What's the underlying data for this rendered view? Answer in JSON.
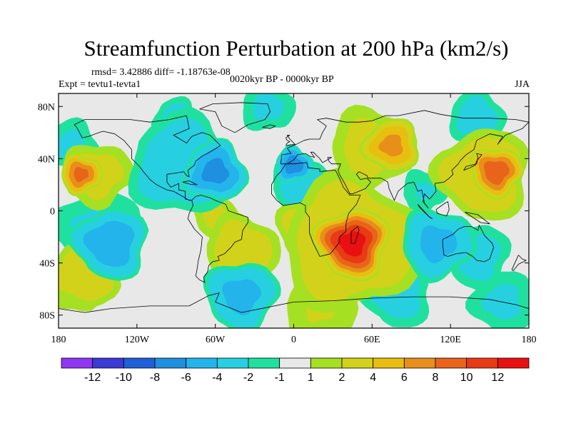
{
  "chart_data": {
    "type": "heatmap",
    "title": "Streamfunction Perturbation at 200 hPa (km2/s)",
    "stats_text": "rmsd= 3.42886  diff= -1.18763e-08",
    "experiment_text": "Expt = tevtu1-tevta1",
    "period_text": "0020kyr BP - 0000kyr BP",
    "season": "JJA",
    "x_range": [
      -180,
      180
    ],
    "y_range": [
      -90,
      90
    ],
    "x_tick_values": [
      -180,
      -120,
      -60,
      0,
      60,
      120,
      180
    ],
    "x_tick_labels": [
      "180",
      "120W",
      "60W",
      "0",
      "60E",
      "120E",
      "180"
    ],
    "y_tick_values": [
      80,
      40,
      0,
      -40,
      -80
    ],
    "y_tick_labels": [
      "80N",
      "40N",
      "0",
      "40S",
      "80S"
    ],
    "colorbar": {
      "boundaries": [
        -14,
        -12,
        -10,
        -8,
        -6,
        -4,
        -2,
        -1,
        1,
        2,
        4,
        6,
        8,
        10,
        12,
        14
      ],
      "labels": [
        "-12",
        "-10",
        "-8",
        "-6",
        "-4",
        "-2",
        "-1",
        "1",
        "2",
        "4",
        "6",
        "8",
        "10",
        "12"
      ],
      "colors": [
        "#8f36f2",
        "#3a3ad6",
        "#1f60d8",
        "#1f8fe0",
        "#23b4ec",
        "#27d0e0",
        "#20e0a0",
        "#e8e8e8",
        "#a6e022",
        "#d2d21a",
        "#e8be10",
        "#e88e1a",
        "#e8641a",
        "#e83a14",
        "#e81010"
      ]
    },
    "features": [
      {
        "lon": 45,
        "lat": -25,
        "value": 13.5,
        "r": 28
      },
      {
        "lon": 45,
        "lat": -25,
        "value": 4.5,
        "r": 58
      },
      {
        "lon": 15,
        "lat": -15,
        "value": 4,
        "r": 30
      },
      {
        "lon": -60,
        "lat": -5,
        "value": 2.5,
        "r": 20
      },
      {
        "lon": -40,
        "lat": -30,
        "value": 3.5,
        "r": 32
      },
      {
        "lon": 155,
        "lat": 30,
        "value": 10,
        "r": 20
      },
      {
        "lon": 145,
        "lat": 28,
        "value": 4,
        "r": 40
      },
      {
        "lon": 75,
        "lat": 50,
        "value": 7,
        "r": 22
      },
      {
        "lon": 60,
        "lat": 48,
        "value": 3,
        "r": 38
      },
      {
        "lon": -163,
        "lat": 28,
        "value": 9,
        "r": 16
      },
      {
        "lon": -150,
        "lat": 28,
        "value": 3,
        "r": 30
      },
      {
        "lon": -160,
        "lat": -48,
        "value": 4,
        "r": 30
      },
      {
        "lon": -165,
        "lat": -60,
        "value": 1.6,
        "r": 30
      },
      {
        "lon": 20,
        "lat": -75,
        "value": 2.2,
        "r": 35
      },
      {
        "lon": -60,
        "lat": 30,
        "value": -7,
        "r": 25
      },
      {
        "lon": -85,
        "lat": 35,
        "value": -4,
        "r": 45
      },
      {
        "lon": 0,
        "lat": 35,
        "value": -7.5,
        "r": 15
      },
      {
        "lon": 5,
        "lat": 20,
        "value": -3.5,
        "r": 25
      },
      {
        "lon": -140,
        "lat": -25,
        "value": -6,
        "r": 30
      },
      {
        "lon": -150,
        "lat": -15,
        "value": -2.5,
        "r": 40
      },
      {
        "lon": 110,
        "lat": -25,
        "value": -5,
        "r": 30
      },
      {
        "lon": 140,
        "lat": -35,
        "value": -3,
        "r": 30
      },
      {
        "lon": -40,
        "lat": -65,
        "value": -5,
        "r": 30
      },
      {
        "lon": 80,
        "lat": -65,
        "value": -3,
        "r": 30
      },
      {
        "lon": 160,
        "lat": -70,
        "value": -2.5,
        "r": 30
      },
      {
        "lon": 100,
        "lat": 15,
        "value": -2.2,
        "r": 22
      },
      {
        "lon": -170,
        "lat": 50,
        "value": -2.5,
        "r": 25
      },
      {
        "lon": -90,
        "lat": 70,
        "value": -3,
        "r": 20
      },
      {
        "lon": -20,
        "lat": 80,
        "value": -2.5,
        "r": 25
      },
      {
        "lon": 140,
        "lat": 72,
        "value": -3,
        "r": 25
      }
    ]
  }
}
